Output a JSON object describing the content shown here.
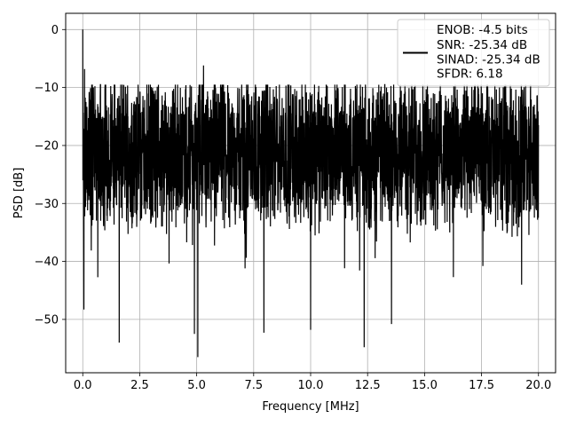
{
  "chart_data": {
    "type": "line",
    "xlabel": "Frequency [MHz]",
    "ylabel": "PSD [dB]",
    "xlim": [
      -0.75,
      20.75
    ],
    "ylim": [
      -59.2,
      2.8
    ],
    "x_ticks": [
      0.0,
      2.5,
      5.0,
      7.5,
      10.0,
      12.5,
      15.0,
      17.5,
      20.0
    ],
    "x_tick_labels": [
      "0.0",
      "2.5",
      "5.0",
      "7.5",
      "10.0",
      "12.5",
      "15.0",
      "17.5",
      "20.0"
    ],
    "y_ticks": [
      0,
      -10,
      -20,
      -30,
      -40,
      -50
    ],
    "y_tick_labels": [
      "0",
      "−10",
      "−20",
      "−30",
      "−40",
      "−50"
    ],
    "grid": true,
    "legend_position": "top-right",
    "series": [
      {
        "color": "#000000",
        "x_range": [
          0,
          20
        ],
        "peak": {
          "x": 0.0,
          "y": 0.0
        },
        "noise_floor_mean_db": -21,
        "noise_floor_min_db": -56.5,
        "noise_floor_max_db": -6.2,
        "notable_values": [
          {
            "x": 0.05,
            "y": -48.3
          },
          {
            "x": 0.08,
            "y": -6.8
          },
          {
            "x": 1.6,
            "y": -54.0
          },
          {
            "x": 4.9,
            "y": -52.5
          },
          {
            "x": 5.05,
            "y": -56.5
          },
          {
            "x": 5.3,
            "y": -6.2
          },
          {
            "x": 7.95,
            "y": -52.3
          },
          {
            "x": 10.0,
            "y": -51.8
          },
          {
            "x": 12.35,
            "y": -54.8
          },
          {
            "x": 13.55,
            "y": -50.8
          }
        ]
      }
    ],
    "legend_entries": [
      "ENOB: -4.5 bits",
      "SNR: -25.34 dB",
      "SINAD: -25.34 dB",
      "SFDR: 6.18"
    ]
  }
}
